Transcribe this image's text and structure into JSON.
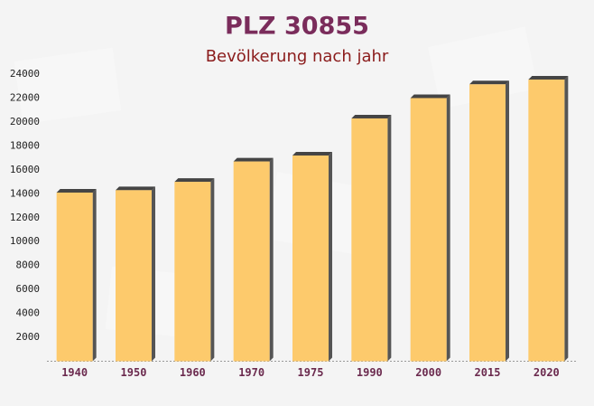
{
  "chart_data": {
    "type": "bar",
    "title": "PLZ 30855",
    "subtitle": "Bevölkerung nach jahr",
    "categories": [
      "1940",
      "1950",
      "1960",
      "1970",
      "1975",
      "1990",
      "2000",
      "2015",
      "2020"
    ],
    "values": [
      14100,
      14300,
      15000,
      16700,
      17200,
      20300,
      22000,
      23150,
      23550
    ],
    "color": "#fdc55f",
    "ylim": [
      0,
      24000
    ],
    "yticks": [
      2000,
      4000,
      6000,
      8000,
      10000,
      12000,
      14000,
      16000,
      18000,
      20000,
      22000,
      24000
    ],
    "grid": false
  }
}
